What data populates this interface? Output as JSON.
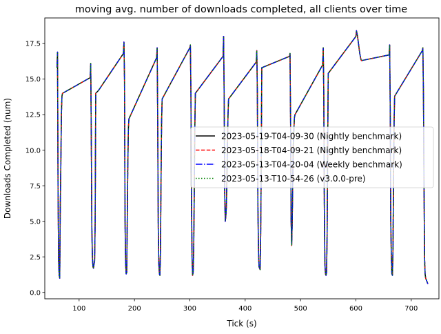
{
  "chart_data": {
    "type": "line",
    "title": "moving avg. number of downloads completed, all clients over time",
    "xlabel": "Tick (s)",
    "ylabel": "Downloads Completed (num)",
    "xlim": [
      38,
      750
    ],
    "ylim": [
      -0.45,
      19.3
    ],
    "xticks": [
      100,
      200,
      300,
      400,
      500,
      600,
      700
    ],
    "yticks": [
      0.0,
      2.5,
      5.0,
      7.5,
      10.0,
      12.5,
      15.0,
      17.5
    ],
    "ytick_labels": [
      "0.0",
      "2.5",
      "5.0",
      "7.5",
      "10.0",
      "12.5",
      "15.0",
      "17.5"
    ],
    "grid": false,
    "legend_position": "center-right",
    "x": [
      60,
      61,
      62,
      63,
      64,
      65,
      66,
      67,
      68,
      69,
      70,
      120,
      121,
      122,
      123,
      124,
      125,
      126,
      127,
      128,
      129,
      130,
      135,
      180,
      181,
      182,
      183,
      184,
      185,
      186,
      187,
      188,
      189,
      190,
      240,
      241,
      242,
      243,
      244,
      245,
      246,
      247,
      248,
      249,
      250,
      300,
      301,
      302,
      303,
      304,
      305,
      306,
      307,
      308,
      309,
      310,
      360,
      361,
      362,
      363,
      364,
      365,
      366,
      367,
      368,
      369,
      370,
      420,
      421,
      422,
      423,
      424,
      425,
      426,
      427,
      428,
      429,
      430,
      480,
      481,
      482,
      483,
      484,
      485,
      486,
      487,
      488,
      489,
      490,
      540,
      541,
      542,
      543,
      544,
      545,
      546,
      547,
      548,
      549,
      550,
      600,
      601,
      602,
      603,
      604,
      605,
      606,
      607,
      608,
      609,
      610,
      660,
      661,
      662,
      663,
      664,
      665,
      666,
      667,
      668,
      669,
      670,
      720,
      721,
      722,
      723,
      724,
      725,
      726,
      727,
      728,
      729,
      730
    ],
    "series": [
      {
        "name": "2023-05-19-T04-09-30 (Nightly benchmark)",
        "color": "#000000",
        "dash": "solid",
        "values": [
          15.8,
          16.9,
          7.0,
          2.2,
          1.2,
          1.0,
          6.0,
          9.0,
          12.5,
          13.8,
          14.0,
          15.1,
          16.1,
          11.0,
          4.5,
          2.5,
          1.8,
          1.7,
          2.0,
          2.2,
          5.0,
          14.0,
          14.2,
          16.8,
          17.6,
          15.0,
          5.0,
          2.0,
          1.3,
          1.4,
          5.0,
          9.0,
          11.5,
          12.2,
          16.5,
          17.2,
          12.0,
          4.5,
          2.0,
          1.3,
          1.2,
          3.0,
          8.0,
          12.0,
          13.6,
          17.2,
          17.4,
          14.0,
          6.5,
          2.5,
          1.2,
          1.4,
          3.0,
          7.0,
          11.5,
          14.0,
          16.6,
          18.0,
          14.0,
          7.0,
          5.0,
          5.3,
          6.0,
          8.0,
          10.5,
          12.5,
          13.6,
          16.2,
          17.0,
          14.0,
          6.0,
          3.0,
          1.8,
          1.7,
          1.6,
          4.0,
          9.0,
          15.8,
          16.6,
          16.8,
          12.0,
          5.0,
          3.3,
          5.0,
          8.0,
          10.5,
          11.5,
          12.3,
          12.5,
          16.0,
          17.2,
          14.0,
          6.0,
          2.0,
          1.3,
          1.2,
          1.4,
          4.0,
          10.0,
          15.4,
          18.0,
          18.4,
          18.2,
          18.0,
          17.7,
          17.4,
          17.1,
          16.8,
          16.6,
          16.4,
          16.3,
          16.7,
          17.4,
          13.0,
          5.0,
          2.5,
          1.3,
          1.2,
          3.0,
          8.0,
          12.0,
          13.8,
          17.0,
          17.2,
          14.0,
          8.0,
          2.5,
          1.3,
          1.0,
          0.9,
          0.8,
          0.7,
          0.6
        ]
      },
      {
        "name": "2023-05-18-T04-09-21 (Nightly benchmark)",
        "color": "#ff0000",
        "dash": "dashed",
        "values": [
          15.8,
          16.9,
          7.0,
          2.2,
          1.2,
          1.0,
          6.0,
          9.0,
          12.5,
          13.8,
          14.0,
          15.1,
          16.1,
          11.0,
          4.5,
          2.5,
          1.8,
          1.7,
          2.0,
          2.2,
          5.0,
          14.0,
          14.2,
          16.8,
          17.6,
          15.0,
          5.0,
          2.0,
          1.3,
          1.4,
          5.0,
          9.0,
          11.5,
          12.2,
          16.5,
          17.2,
          12.0,
          4.5,
          2.0,
          1.3,
          1.2,
          3.0,
          8.0,
          12.0,
          13.6,
          17.2,
          17.4,
          14.0,
          6.5,
          2.5,
          1.2,
          1.4,
          3.0,
          7.0,
          11.5,
          14.0,
          16.6,
          18.0,
          14.0,
          7.0,
          5.0,
          5.3,
          6.0,
          8.0,
          10.5,
          12.5,
          13.6,
          16.2,
          17.0,
          14.0,
          6.0,
          3.0,
          1.8,
          1.7,
          1.6,
          4.0,
          9.0,
          15.8,
          16.6,
          16.8,
          12.0,
          5.0,
          3.3,
          5.0,
          8.0,
          10.5,
          11.5,
          12.3,
          12.5,
          16.0,
          17.2,
          14.0,
          6.0,
          2.0,
          1.3,
          1.2,
          1.4,
          4.0,
          10.0,
          15.4,
          18.0,
          18.4,
          18.2,
          18.0,
          17.7,
          17.4,
          17.1,
          16.8,
          16.6,
          16.4,
          16.3,
          16.7,
          17.4,
          13.0,
          5.0,
          2.5,
          1.3,
          1.2,
          3.0,
          8.0,
          12.0,
          13.8,
          17.0,
          17.2,
          14.0,
          8.0,
          2.5,
          1.3,
          1.0,
          0.9,
          0.8,
          0.7,
          0.6
        ]
      },
      {
        "name": "2023-05-13-T04-20-04 (Weekly benchmark)",
        "color": "#0000ff",
        "dash": "dashdot",
        "values": [
          15.8,
          16.9,
          7.0,
          2.2,
          1.2,
          1.0,
          6.0,
          9.0,
          12.5,
          13.8,
          14.0,
          15.1,
          16.1,
          11.0,
          4.5,
          2.5,
          1.8,
          1.7,
          2.0,
          2.2,
          5.0,
          14.0,
          14.2,
          16.8,
          17.6,
          15.0,
          5.0,
          2.0,
          1.3,
          1.4,
          5.0,
          9.0,
          11.5,
          12.2,
          16.5,
          17.2,
          12.0,
          4.5,
          2.0,
          1.3,
          1.2,
          3.0,
          8.0,
          12.0,
          13.6,
          17.2,
          17.4,
          14.0,
          6.5,
          2.5,
          1.2,
          1.4,
          3.0,
          7.0,
          11.5,
          14.0,
          16.6,
          18.0,
          14.0,
          7.0,
          5.0,
          5.3,
          6.0,
          8.0,
          10.5,
          12.5,
          13.6,
          16.2,
          17.0,
          14.0,
          6.0,
          3.0,
          1.8,
          1.7,
          1.6,
          4.0,
          9.0,
          15.8,
          16.6,
          16.8,
          12.0,
          5.0,
          3.3,
          5.0,
          8.0,
          10.5,
          11.5,
          12.3,
          12.5,
          16.0,
          17.2,
          14.0,
          6.0,
          2.0,
          1.3,
          1.2,
          1.4,
          4.0,
          10.0,
          15.4,
          18.0,
          18.4,
          18.2,
          18.0,
          17.7,
          17.4,
          17.1,
          16.8,
          16.6,
          16.4,
          16.3,
          16.7,
          17.4,
          13.0,
          5.0,
          2.5,
          1.3,
          1.2,
          3.0,
          8.0,
          12.0,
          13.8,
          17.0,
          17.2,
          14.0,
          8.0,
          2.5,
          1.3,
          1.0,
          0.9,
          0.8,
          0.7,
          0.6
        ]
      },
      {
        "name": "2023-05-13-T10-54-26 (v3.0.0-pre)",
        "color": "#008000",
        "dash": "dotted",
        "values": [
          15.8,
          16.9,
          7.0,
          2.2,
          1.2,
          1.0,
          6.0,
          9.0,
          12.5,
          13.8,
          14.0,
          15.1,
          16.1,
          11.0,
          4.5,
          2.5,
          1.8,
          1.7,
          2.0,
          2.2,
          5.0,
          14.0,
          14.2,
          16.8,
          17.6,
          15.0,
          5.0,
          2.0,
          1.3,
          1.4,
          5.0,
          9.0,
          11.5,
          12.2,
          16.5,
          17.2,
          12.0,
          4.5,
          2.0,
          1.3,
          1.2,
          3.0,
          8.0,
          12.0,
          13.6,
          17.2,
          17.4,
          14.0,
          6.5,
          2.5,
          1.2,
          1.4,
          3.0,
          7.0,
          11.5,
          14.0,
          16.6,
          18.0,
          14.0,
          7.0,
          5.0,
          5.3,
          6.0,
          8.0,
          10.5,
          12.5,
          13.6,
          16.2,
          17.0,
          14.0,
          6.0,
          3.0,
          1.8,
          1.7,
          1.6,
          4.0,
          9.0,
          15.8,
          16.6,
          16.8,
          12.0,
          5.0,
          3.3,
          5.0,
          8.0,
          10.5,
          11.5,
          12.3,
          12.5,
          16.0,
          17.2,
          14.0,
          6.0,
          2.0,
          1.3,
          1.2,
          1.4,
          4.0,
          10.0,
          15.4,
          18.0,
          18.4,
          18.2,
          18.0,
          17.7,
          17.4,
          17.1,
          16.8,
          16.6,
          16.4,
          16.3,
          16.7,
          17.4,
          13.0,
          5.0,
          2.5,
          1.3,
          1.2,
          3.0,
          8.0,
          12.0,
          13.8,
          17.0,
          17.2,
          14.0,
          8.0,
          2.5,
          1.3,
          1.0,
          0.9,
          0.8,
          0.7,
          0.6
        ]
      }
    ]
  }
}
